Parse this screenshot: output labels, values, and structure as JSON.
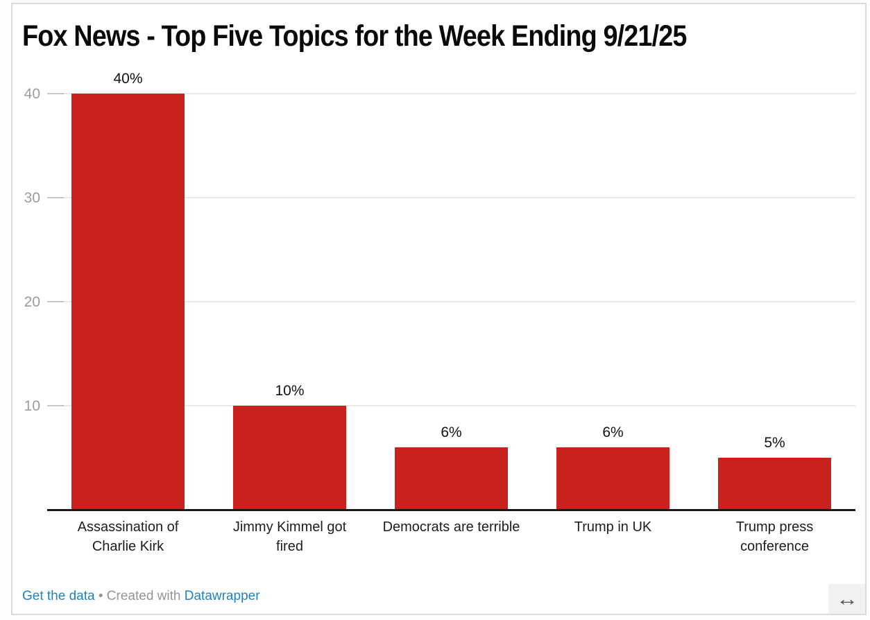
{
  "chart_data": {
    "type": "bar",
    "title": "Fox News - Top Five Topics for the Week Ending 9/21/25",
    "categories": [
      "Assassination of Charlie Kirk",
      "Jimmy Kimmel got fired",
      "Democrats are terrible",
      "Trump in UK",
      "Trump press conference"
    ],
    "values": [
      40,
      10,
      6,
      6,
      5
    ],
    "value_labels": [
      "40%",
      "10%",
      "6%",
      "6%",
      "5%"
    ],
    "xlabel": "",
    "ylabel": "",
    "ylim": [
      0,
      40
    ],
    "yticks": [
      10,
      20,
      30,
      40
    ],
    "grid": true,
    "legend": false,
    "bar_color": "#c9211e",
    "gridline_color": "#e9e9e9",
    "axis_color": "#181818",
    "tick_label_color": "#9b9b9b"
  },
  "footer": {
    "get_data_label": "Get the data",
    "separator": "•",
    "created_with": "Created with",
    "datawrapper_label": "Datawrapper",
    "link_color": "#1d81c4"
  },
  "resize": {
    "glyph": "↔"
  }
}
